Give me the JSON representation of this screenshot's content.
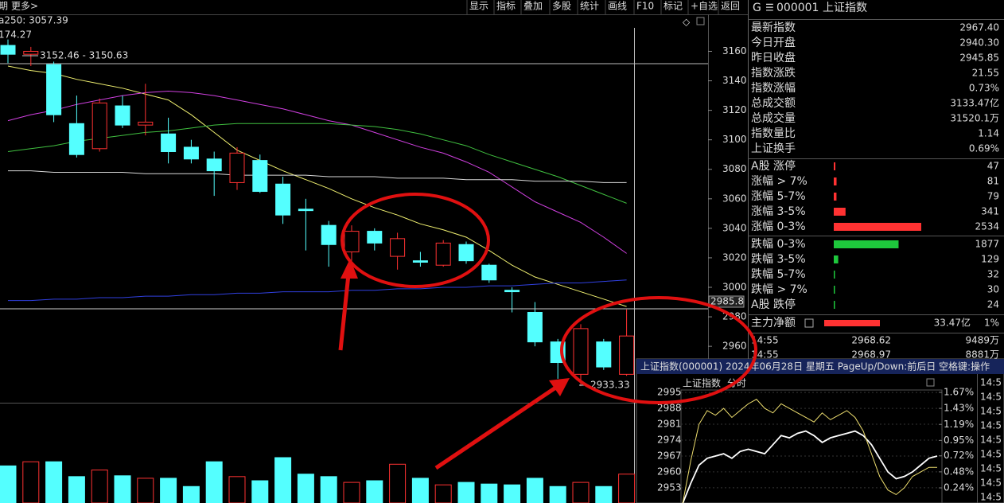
{
  "toolbar": {
    "left": [
      "期",
      "更多>"
    ],
    "buttons": [
      "显示",
      "指标",
      "叠加",
      "多股",
      "统计",
      "画线",
      "F10",
      "标记",
      "+自选",
      "返回"
    ]
  },
  "header": {
    "mark": "G",
    "menu": "☰",
    "code": "000001",
    "name": "上证指数"
  },
  "info": [
    {
      "label": "最新指数",
      "value": "2967.40",
      "color": "#ff3c3c"
    },
    {
      "label": "今日开盘",
      "value": "2940.30",
      "color": "#ff3c3c"
    },
    {
      "label": "昨日收盘",
      "value": "2945.85",
      "color": "#e8e8e8"
    },
    {
      "label": "指数涨跌",
      "value": "21.55",
      "color": "#ff3c3c"
    },
    {
      "label": "指数涨幅",
      "value": "0.73%",
      "color": "#ff3c3c"
    },
    {
      "label": "总成交额",
      "value": "3133.47亿",
      "color": "#f0e060"
    },
    {
      "label": "总成交量",
      "value": "31520.1万",
      "color": "#f0e060"
    },
    {
      "label": "指数量比",
      "value": "1.14",
      "color": "#ff3c3c"
    },
    {
      "label": "上证换手",
      "value": "0.69%",
      "color": "#e8e8e8"
    }
  ],
  "breadth_up": {
    "color": "#ff3232",
    "rows": [
      {
        "label": "A股 涨停",
        "value": 47
      },
      {
        "label": "涨幅 > 7%",
        "value": 81
      },
      {
        "label": "涨幅 5-7%",
        "value": 79
      },
      {
        "label": "涨幅 3-5%",
        "value": 341
      },
      {
        "label": "涨幅 0-3%",
        "value": 2534
      }
    ]
  },
  "breadth_down": {
    "color": "#1ec83c",
    "rows": [
      {
        "label": "跌幅 0-3%",
        "value": 1877
      },
      {
        "label": "跌幅 3-5%",
        "value": 129
      },
      {
        "label": "跌幅 5-7%",
        "value": 32
      },
      {
        "label": "跌幅 > 7%",
        "value": 30
      },
      {
        "label": "A股 跌停",
        "value": 24
      }
    ]
  },
  "net_flow": {
    "label": "主力净额",
    "value": "33.47亿",
    "pct": "1%"
  },
  "ticks_list": [
    {
      "time": "14:55",
      "price": "2968.62",
      "vol": "9489万"
    },
    {
      "time": "14:55",
      "price": "2968.97",
      "vol": "8881万"
    }
  ],
  "chart_data": {
    "type": "candlestick",
    "legend_text": "a250: 3057.39",
    "top_label": "174.27",
    "range_label": "3152.46 - 3150.63",
    "low_label": "2933.33",
    "last_label": "2985.8",
    "up_color": "#ff3232",
    "down_color": "#54ffff",
    "open": [
      3164,
      3158,
      3151,
      3111,
      3094,
      3123,
      3110,
      3104,
      3095,
      3087,
      3071,
      3086,
      3070,
      3053,
      3042,
      3024,
      3038,
      3021,
      3018,
      3015,
      3029,
      3015,
      2998,
      2983,
      2963,
      2941,
      2963,
      2941
    ],
    "high": [
      3168,
      3163,
      3153,
      3130,
      3128,
      3130,
      3138,
      3115,
      3100,
      3092,
      3095,
      3090,
      3075,
      3060,
      3045,
      3042,
      3040,
      3037,
      3024,
      3032,
      3031,
      3016,
      3000,
      2990,
      2965,
      2975,
      2965,
      2985
    ],
    "low": [
      3152,
      3150,
      3112,
      3088,
      3092,
      3108,
      3103,
      3084,
      3084,
      3062,
      3066,
      3064,
      3043,
      3025,
      3014,
      3018,
      3025,
      3012,
      3014,
      3014,
      3016,
      3003,
      2983,
      2960,
      2938,
      2933,
      2944,
      2940
    ],
    "close": [
      3158,
      3160,
      3117,
      3090,
      3125,
      3110,
      3112,
      3092,
      3087,
      3079,
      3091,
      3065,
      3049,
      3052,
      3029,
      3038,
      3030,
      3033,
      3017,
      3030,
      3018,
      3005,
      2997,
      2963,
      2949,
      2972,
      2946,
      2967
    ],
    "volumes": [
      45,
      50,
      50,
      32,
      40,
      33,
      30,
      30,
      20,
      50,
      32,
      27,
      55,
      35,
      32,
      25,
      27,
      47,
      30,
      22,
      25,
      23,
      22,
      30,
      20,
      25,
      20,
      35
    ],
    "ylim": [
      2925,
      3184
    ],
    "yticks": [
      3160,
      3140,
      3120,
      3100,
      3080,
      3060,
      3040,
      3020,
      3000,
      2980,
      2960
    ],
    "ma": [
      {
        "color": "#f0f070",
        "values": [
          3150,
          3147,
          3145,
          3141,
          3138,
          3135,
          3131,
          3127,
          3117,
          3105,
          3093,
          3086,
          3079,
          3073,
          3067,
          3060,
          3054,
          3049,
          3043,
          3039,
          3034,
          3025,
          3015,
          3007,
          3002,
          2997,
          2992,
          2987
        ]
      },
      {
        "color": "#d040e0",
        "values": [
          3113,
          3117,
          3120,
          3124,
          3127,
          3130,
          3132,
          3133,
          3132,
          3130,
          3127,
          3124,
          3121,
          3117,
          3113,
          3110,
          3105,
          3100,
          3095,
          3091,
          3085,
          3078,
          3068,
          3058,
          3051,
          3044,
          3034,
          3023
        ]
      },
      {
        "color": "#40c040",
        "values": [
          3092,
          3094,
          3096,
          3099,
          3101,
          3103,
          3105,
          3106,
          3108,
          3110,
          3111,
          3111,
          3111,
          3111,
          3111,
          3110,
          3109,
          3107,
          3104,
          3100,
          3096,
          3090,
          3085,
          3080,
          3075,
          3069,
          3063,
          3057
        ]
      },
      {
        "color": "#d8d8d8",
        "values": [
          3079,
          3079,
          3078,
          3078,
          3078,
          3078,
          3077,
          3077,
          3077,
          3077,
          3076,
          3076,
          3076,
          3076,
          3075,
          3075,
          3075,
          3074,
          3074,
          3074,
          3073,
          3073,
          3073,
          3072,
          3072,
          3072,
          3071,
          3071
        ]
      },
      {
        "color": "#3040e0",
        "values": [
          2991,
          2991,
          2992,
          2992,
          2993,
          2993,
          2994,
          2994,
          2995,
          2995,
          2996,
          2996,
          2997,
          2997,
          2997,
          2998,
          2998,
          2999,
          2999,
          3000,
          3000,
          3001,
          3001,
          3002,
          3003,
          3003,
          3004,
          3005
        ]
      }
    ]
  },
  "popup": {
    "title": "上证指数(000001) 2024年06月28日 星期五 PageUp/Down:前后日 空格键:操作",
    "name": "上证指数",
    "mode": "分时",
    "ylim": [
      2946.3,
      3001
    ],
    "yticks": [
      2995,
      2988,
      2981,
      2974,
      2967,
      2960,
      2953
    ],
    "y2lim": [
      0.014,
      1.872
    ],
    "y2ticks": [
      {
        "value": 1.67,
        "label": "1.67%"
      },
      {
        "value": 1.43,
        "label": "1.43%"
      },
      {
        "value": 1.19,
        "label": "1.19%"
      },
      {
        "value": 0.95,
        "label": "0.95%"
      },
      {
        "value": 0.72,
        "label": "0.72%"
      },
      {
        "value": 0.48,
        "label": "0.48%"
      },
      {
        "value": 0.24,
        "label": "0.24%"
      }
    ],
    "series": [
      {
        "color": "#ffffff",
        "values": [
          2946,
          2955,
          2963,
          2966,
          2967,
          2968,
          2966,
          2969,
          2970,
          2969,
          2968,
          2972,
          2976,
          2975,
          2977,
          2978,
          2976,
          2973,
          2975,
          2976,
          2977,
          2978,
          2976,
          2972,
          2966,
          2960,
          2957,
          2958,
          2960,
          2963,
          2966,
          2967
        ]
      },
      {
        "color": "#f0e070",
        "values": [
          2946,
          2965,
          2981,
          2987,
          2985,
          2988,
          2984,
          2987,
          2990,
          2992,
          2988,
          2986,
          2990,
          2988,
          2986,
          2984,
          2982,
          2986,
          2983,
          2985,
          2987,
          2984,
          2978,
          2968,
          2958,
          2952,
          2950,
          2953,
          2958,
          2960,
          2962,
          2962
        ]
      }
    ],
    "times": [
      "14:5",
      "14:5",
      "14:5",
      "14:5",
      "14:5",
      "14:5",
      "14:5",
      "14:5",
      "14:5"
    ]
  }
}
